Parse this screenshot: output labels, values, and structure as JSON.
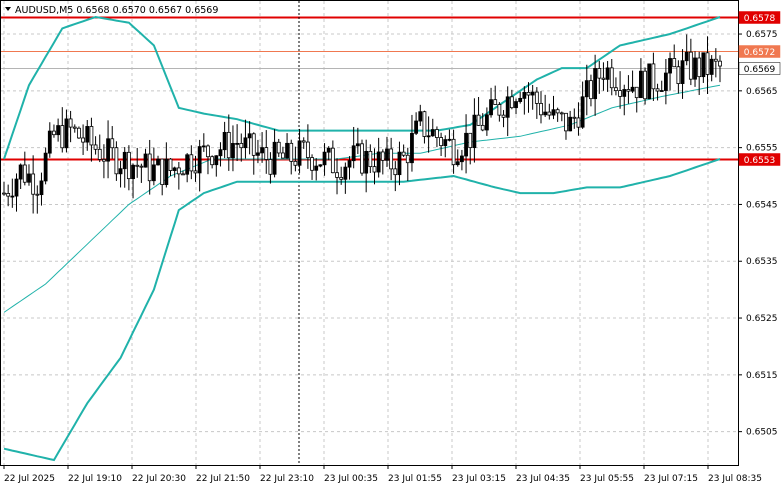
{
  "chart_data": {
    "type": "candlestick",
    "symbol_line": "AUDUSD,M5  0.6568 0.6570 0.6567 0.6569",
    "price_axis_ticks": [
      "0.6575",
      "0.6565",
      "0.6555",
      "0.6545",
      "0.6535",
      "0.6525",
      "0.6515",
      "0.6505"
    ],
    "price_range": [
      0.65,
      0.658
    ],
    "time_axis_ticks": [
      "22 Jul 2025",
      "22 Jul 19:10",
      "22 Jul 20:30",
      "22 Jul 21:50",
      "22 Jul 23:10",
      "23 Jul 00:35",
      "23 Jul 01:55",
      "23 Jul 03:15",
      "23 Jul 04:35",
      "23 Jul 05:55",
      "23 Jul 07:15",
      "23 Jul 08:35"
    ],
    "grid": true,
    "horizontal_lines": [
      {
        "name": "resistance",
        "value": 0.6578,
        "label": "0.6578",
        "color": "#e00000",
        "width": 2
      },
      {
        "name": "level",
        "value": 0.6572,
        "label": "0.6572",
        "color": "#f07850",
        "width": 1
      },
      {
        "name": "bid",
        "value": 0.6569,
        "label": "0.6569",
        "color": "#b4b4b4",
        "width": 1
      },
      {
        "name": "support",
        "value": 0.6553,
        "label": "0.6553",
        "color": "#e00000",
        "width": 2
      }
    ],
    "vertical_marker_x_label": "22 Jul 23:10",
    "colors": {
      "band": "#20b2aa",
      "ma": "#20b2aa",
      "candle": "#000000",
      "label_red": "#e00000",
      "label_orange": "#f07850"
    },
    "candle_count": 140,
    "candles_approx": "drawn procedurally; close path sampled below",
    "close_path": [
      [
        0,
        0.6547
      ],
      [
        4,
        0.6551
      ],
      [
        8,
        0.6549
      ],
      [
        12,
        0.6557
      ],
      [
        16,
        0.6558
      ],
      [
        20,
        0.6556
      ],
      [
        24,
        0.6554
      ],
      [
        28,
        0.6553
      ],
      [
        32,
        0.6552
      ],
      [
        36,
        0.6551
      ],
      [
        40,
        0.6551
      ],
      [
        44,
        0.6553
      ],
      [
        48,
        0.6554
      ],
      [
        52,
        0.6555
      ],
      [
        56,
        0.6556
      ],
      [
        60,
        0.6554
      ],
      [
        64,
        0.6553
      ],
      [
        68,
        0.6553
      ],
      [
        72,
        0.6554
      ],
      [
        76,
        0.6553
      ],
      [
        80,
        0.6552
      ],
      [
        84,
        0.6553
      ],
      [
        88,
        0.6553
      ],
      [
        92,
        0.6552
      ],
      [
        96,
        0.6553
      ],
      [
        100,
        0.6559
      ],
      [
        104,
        0.6557
      ],
      [
        108,
        0.6555
      ],
      [
        112,
        0.6557
      ],
      [
        116,
        0.656
      ],
      [
        120,
        0.6563
      ],
      [
        124,
        0.6566
      ],
      [
        128,
        0.6563
      ],
      [
        132,
        0.656
      ],
      [
        136,
        0.6559
      ],
      [
        140,
        0.6564
      ],
      [
        144,
        0.6569
      ],
      [
        148,
        0.6567
      ],
      [
        152,
        0.6566
      ],
      [
        156,
        0.6567
      ],
      [
        160,
        0.6568
      ],
      [
        164,
        0.6569
      ],
      [
        168,
        0.6569
      ],
      [
        172,
        0.6569
      ]
    ],
    "upper_band_path": [
      [
        0,
        0.6553
      ],
      [
        6,
        0.6566
      ],
      [
        14,
        0.6576
      ],
      [
        22,
        0.6578
      ],
      [
        30,
        0.6577
      ],
      [
        36,
        0.6573
      ],
      [
        42,
        0.6562
      ],
      [
        48,
        0.6561
      ],
      [
        56,
        0.656
      ],
      [
        66,
        0.6558
      ],
      [
        80,
        0.6558
      ],
      [
        92,
        0.6558
      ],
      [
        104,
        0.6558
      ],
      [
        112,
        0.6559
      ],
      [
        120,
        0.6563
      ],
      [
        128,
        0.6567
      ],
      [
        134,
        0.6569
      ],
      [
        140,
        0.6569
      ],
      [
        148,
        0.6573
      ],
      [
        160,
        0.6575
      ],
      [
        172,
        0.6578
      ]
    ],
    "lower_band_path": [
      [
        0,
        0.6502
      ],
      [
        12,
        0.65
      ],
      [
        20,
        0.651
      ],
      [
        28,
        0.6518
      ],
      [
        36,
        0.653
      ],
      [
        42,
        0.6544
      ],
      [
        48,
        0.6547
      ],
      [
        56,
        0.6549
      ],
      [
        70,
        0.6549
      ],
      [
        84,
        0.6549
      ],
      [
        96,
        0.6549
      ],
      [
        108,
        0.655
      ],
      [
        118,
        0.6548
      ],
      [
        124,
        0.6547
      ],
      [
        132,
        0.6547
      ],
      [
        140,
        0.6548
      ],
      [
        148,
        0.6548
      ],
      [
        160,
        0.655
      ],
      [
        172,
        0.6553
      ]
    ],
    "ma_path": [
      [
        0,
        0.6526
      ],
      [
        10,
        0.6531
      ],
      [
        20,
        0.6538
      ],
      [
        30,
        0.6545
      ],
      [
        40,
        0.655
      ],
      [
        50,
        0.6553
      ],
      [
        60,
        0.6553
      ],
      [
        70,
        0.6553
      ],
      [
        80,
        0.6553
      ],
      [
        90,
        0.6554
      ],
      [
        100,
        0.6554
      ],
      [
        112,
        0.6556
      ],
      [
        124,
        0.6557
      ],
      [
        136,
        0.6559
      ],
      [
        146,
        0.6562
      ],
      [
        158,
        0.6564
      ],
      [
        172,
        0.6566
      ]
    ]
  }
}
